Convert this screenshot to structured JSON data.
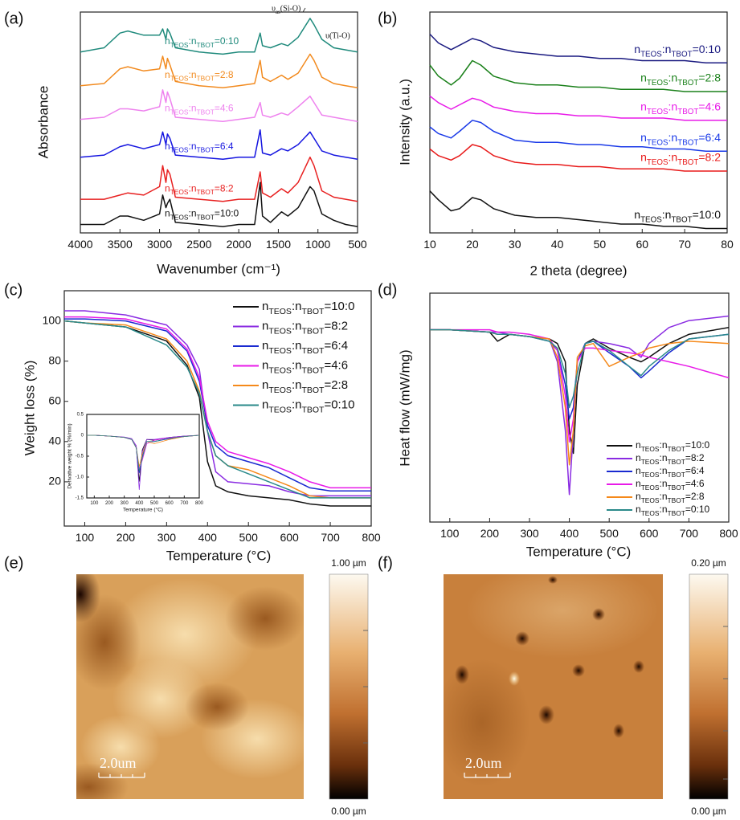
{
  "chart_data": [
    {
      "type": "line",
      "panel_label": "(a)",
      "x_label": "Wavenumber (cm⁻¹)",
      "y_label": "Absorbance",
      "annotations": [
        "υas(Si-O)",
        "υ(Ti-O)"
      ],
      "x": [
        4000,
        3700,
        3500,
        3400,
        3200,
        3000,
        2960,
        2920,
        2900,
        2870,
        2800,
        2500,
        2200,
        2000,
        1800,
        1730,
        1700,
        1600,
        1460,
        1380,
        1250,
        1100,
        1050,
        950,
        800,
        650,
        500
      ],
      "xlim": [
        4000,
        500
      ],
      "xticks": [
        4000,
        3500,
        3000,
        2500,
        2000,
        1500,
        1000,
        500
      ],
      "ylim": [
        0,
        105
      ],
      "series": [
        {
          "name": "nTEOS:nTBOT=0:10",
          "color": "#1f8a7c",
          "values": [
            86,
            88,
            95,
            96,
            94,
            94,
            97,
            92,
            97,
            95,
            88,
            86,
            85,
            86,
            86,
            95,
            89,
            88,
            90,
            89,
            93,
            102,
            99,
            92,
            88,
            87,
            86
          ]
        },
        {
          "name": "nTEOS:nTBOT=2:8",
          "color": "#f28a1e",
          "values": [
            70,
            71,
            78,
            79,
            77,
            78,
            84,
            78,
            83,
            80,
            72,
            70,
            69,
            70,
            71,
            82,
            74,
            72,
            75,
            73,
            76,
            85,
            82,
            74,
            71,
            70,
            69
          ]
        },
        {
          "name": "nTEOS:nTBOT=4:6",
          "color": "#ee82ee",
          "values": [
            54,
            55,
            59,
            59,
            58,
            60,
            68,
            62,
            67,
            64,
            55,
            54,
            53,
            54,
            55,
            62,
            56,
            55,
            57,
            56,
            60,
            65,
            62,
            56,
            55,
            54,
            53
          ]
        },
        {
          "name": "nTEOS:nTBOT=6:4",
          "color": "#1515e0",
          "values": [
            36,
            37,
            41,
            42,
            40,
            42,
            48,
            42,
            47,
            45,
            37,
            36,
            35,
            36,
            36,
            49,
            38,
            37,
            40,
            39,
            42,
            48,
            45,
            39,
            37,
            36,
            35
          ]
        },
        {
          "name": "nTEOS:nTBOT=8:2",
          "color": "#e82020",
          "values": [
            16,
            16,
            18,
            19,
            18,
            22,
            32,
            24,
            30,
            28,
            17,
            16,
            15,
            16,
            16,
            29,
            19,
            17,
            21,
            19,
            24,
            36,
            32,
            20,
            17,
            16,
            15
          ]
        },
        {
          "name": "nTEOS:nTBOT=10:0",
          "color": "#111111",
          "values": [
            4,
            4,
            8,
            8,
            6,
            9,
            18,
            12,
            14,
            16,
            5,
            4,
            3,
            4,
            4,
            24,
            8,
            5,
            10,
            8,
            12,
            22,
            20,
            9,
            6,
            4,
            3
          ]
        }
      ]
    },
    {
      "type": "line",
      "panel_label": "(b)",
      "x_label": "2 theta (degree)",
      "y_label": "Intensity (a.u.)",
      "x": [
        10,
        12,
        15,
        17,
        20,
        22,
        25,
        30,
        35,
        40,
        45,
        50,
        55,
        60,
        65,
        70,
        75,
        80
      ],
      "xlim": [
        10,
        80
      ],
      "xticks": [
        10,
        20,
        30,
        40,
        50,
        60,
        70,
        80
      ],
      "ylim": [
        0,
        100
      ],
      "series": [
        {
          "name": "nTEOS:nTBOT=0:10",
          "color": "#1a1a80",
          "values": [
            90,
            86,
            83,
            85,
            88,
            87,
            84,
            82,
            81,
            80,
            80,
            79,
            79,
            78,
            78,
            78,
            77,
            77
          ]
        },
        {
          "name": "nTEOS:nTBOT=2:8",
          "color": "#1a801a",
          "values": [
            76,
            71,
            67,
            70,
            78,
            76,
            71,
            68,
            67,
            67,
            66,
            66,
            65,
            65,
            65,
            64,
            64,
            64
          ]
        },
        {
          "name": "nTEOS:nTBOT=4:6",
          "color": "#e81ae8",
          "values": [
            62,
            59,
            56,
            58,
            61,
            60,
            57,
            55,
            54,
            54,
            53,
            53,
            52,
            52,
            52,
            51,
            51,
            51
          ]
        },
        {
          "name": "nTEOS:nTBOT=6:4",
          "color": "#1a3ae8",
          "values": [
            48,
            45,
            43,
            46,
            51,
            50,
            46,
            42,
            41,
            41,
            40,
            40,
            39,
            39,
            38,
            38,
            37,
            37
          ]
        },
        {
          "name": "nTEOS:nTBOT=8:2",
          "color": "#e81a1a",
          "values": [
            38,
            35,
            33,
            35,
            40,
            39,
            35,
            32,
            31,
            31,
            30,
            30,
            29,
            29,
            29,
            28,
            28,
            28
          ]
        },
        {
          "name": "nTEOS:nTBOT=10:0",
          "color": "#111111",
          "values": [
            19,
            15,
            10,
            11,
            16,
            15,
            11,
            8,
            7,
            7,
            6,
            5,
            4,
            4,
            3,
            3,
            2,
            2
          ]
        }
      ]
    },
    {
      "type": "line",
      "panel_label": "(c)",
      "x_label": "Temperature (°C)",
      "y_label": "Weight loss (%)",
      "legend": "upper right",
      "x": [
        50,
        100,
        200,
        300,
        350,
        380,
        400,
        420,
        450,
        500,
        550,
        600,
        650,
        700,
        800
      ],
      "xlim": [
        50,
        800
      ],
      "xticks": [
        100,
        200,
        300,
        400,
        500,
        600,
        700,
        800
      ],
      "ylim": [
        -2,
        115
      ],
      "yticks": [
        20,
        40,
        60,
        80,
        100
      ],
      "series": [
        {
          "name": "nTEOS:nTBOT=10:0",
          "color": "#111111",
          "values": [
            100,
            99,
            97,
            90,
            78,
            62,
            30,
            18,
            15,
            13,
            12,
            11,
            9,
            8,
            8
          ]
        },
        {
          "name": "nTEOS:nTBOT=8:2",
          "color": "#8a2be2",
          "values": [
            105,
            105,
            103,
            98,
            88,
            76,
            45,
            25,
            20,
            19,
            18,
            15,
            13,
            13,
            13
          ]
        },
        {
          "name": "nTEOS:nTBOT=6:4",
          "color": "#1a2ad0",
          "values": [
            101,
            101,
            100,
            95,
            85,
            70,
            48,
            38,
            33,
            30,
            27,
            22,
            17,
            15.5,
            15.5
          ]
        },
        {
          "name": "nTEOS:nTBOT=4:6",
          "color": "#e81ae8",
          "values": [
            102,
            102,
            101,
            96,
            86,
            72,
            50,
            40,
            35,
            32,
            29,
            25,
            20,
            17,
            17
          ]
        },
        {
          "name": "nTEOS:nTBOT=2:8",
          "color": "#f5891a",
          "values": [
            100,
            99,
            98,
            91,
            80,
            65,
            45,
            33,
            28,
            26,
            22,
            18,
            13,
            12,
            12
          ]
        },
        {
          "name": "nTEOS:nTBOT=0:10",
          "color": "#2a8a8a",
          "values": [
            100,
            99,
            97,
            88,
            77,
            64,
            45,
            33,
            28,
            24,
            20,
            16,
            12,
            12,
            12
          ]
        }
      ]
    },
    {
      "type": "line",
      "panel_label": "(d)",
      "x_label": "Temperature (°C)",
      "y_label": "Heat flow (mW/mg)",
      "legend": "lower right",
      "x": [
        50,
        100,
        200,
        220,
        250,
        300,
        350,
        370,
        390,
        400,
        410,
        420,
        440,
        460,
        500,
        550,
        580,
        600,
        650,
        700,
        800
      ],
      "xlim": [
        50,
        800
      ],
      "xticks": [
        100,
        200,
        300,
        400,
        500,
        600,
        700,
        800
      ],
      "ylim": [
        0,
        100
      ],
      "series": [
        {
          "name": "nTEOS:nTBOT=10:0",
          "color": "#111111",
          "values": [
            84,
            84,
            83,
            79,
            82,
            81,
            80,
            78,
            70,
            40,
            30,
            60,
            78,
            80,
            76,
            72,
            70,
            72,
            78,
            82,
            85
          ]
        },
        {
          "name": "nTEOS:nTBOT=8:2",
          "color": "#8a2be2",
          "values": [
            84,
            84,
            83,
            83,
            82,
            81,
            80,
            70,
            40,
            12,
            40,
            70,
            78,
            79,
            78,
            76,
            72,
            78,
            85,
            88,
            90
          ]
        },
        {
          "name": "nTEOS:nTBOT=6:4",
          "color": "#1a2ad0",
          "values": [
            84,
            84,
            83,
            82,
            82,
            81,
            79,
            75,
            60,
            45,
            50,
            70,
            78,
            79,
            74,
            68,
            63,
            66,
            74,
            80,
            82
          ]
        },
        {
          "name": "nTEOS:nTBOT=4:6",
          "color": "#e81ae8",
          "values": [
            84,
            84,
            84,
            83,
            83,
            82,
            80,
            75,
            55,
            35,
            45,
            70,
            76,
            76,
            75,
            74,
            73,
            72,
            70,
            68,
            63
          ]
        },
        {
          "name": "nTEOS:nTBOT=2:8",
          "color": "#f5891a",
          "values": [
            84,
            84,
            83,
            82,
            82,
            81,
            80,
            72,
            50,
            25,
            40,
            72,
            77,
            78,
            68,
            72,
            74,
            76,
            78,
            79,
            78
          ]
        },
        {
          "name": "nTEOS:nTBOT=0:10",
          "color": "#2a8a8a",
          "values": [
            84,
            84,
            83,
            82,
            82,
            81,
            79,
            76,
            65,
            50,
            55,
            65,
            78,
            79,
            75,
            68,
            64,
            68,
            75,
            80,
            82
          ]
        }
      ]
    },
    {
      "type": "line",
      "x_label": "Temperature (°C)",
      "y_label": "Derivative weight % (%/min)",
      "x": [
        50,
        100,
        200,
        300,
        350,
        380,
        400,
        420,
        450,
        500,
        600,
        700,
        800
      ],
      "xlim": [
        50,
        800
      ],
      "xticks": [
        100,
        200,
        300,
        400,
        500,
        600,
        700,
        800
      ],
      "ylim": [
        -1.5,
        0.5
      ],
      "yticks": [
        0.5,
        0,
        -0.5,
        {
          "value": -1,
          "label": "-1.0"
        },
        -1.5
      ],
      "series": [
        {
          "color": "#111111",
          "values": [
            0,
            0,
            -0.02,
            -0.05,
            -0.1,
            -0.3,
            -1.1,
            -0.35,
            -0.1,
            -0.12,
            -0.05,
            -0.02,
            0
          ]
        },
        {
          "color": "#8a2be2",
          "values": [
            0,
            0,
            -0.02,
            -0.04,
            -0.08,
            -0.25,
            -1.3,
            -0.4,
            -0.1,
            -0.1,
            -0.05,
            -0.02,
            0
          ]
        },
        {
          "color": "#1a2ad0",
          "values": [
            0,
            0,
            -0.02,
            -0.05,
            -0.1,
            -0.3,
            -0.9,
            -0.5,
            -0.15,
            -0.15,
            -0.08,
            -0.03,
            0
          ]
        },
        {
          "color": "#e81ae8",
          "values": [
            0,
            0,
            -0.02,
            -0.05,
            -0.1,
            -0.28,
            -0.8,
            -0.6,
            -0.2,
            -0.12,
            -0.06,
            -0.03,
            0
          ]
        },
        {
          "color": "#f5891a",
          "values": [
            0,
            0,
            -0.02,
            -0.05,
            -0.1,
            -0.3,
            -0.75,
            -0.45,
            -0.15,
            -0.2,
            -0.1,
            -0.03,
            0
          ]
        },
        {
          "color": "#2a8a8a",
          "values": [
            0,
            0,
            -0.02,
            -0.05,
            -0.1,
            -0.3,
            -0.85,
            -0.55,
            -0.15,
            -0.15,
            -0.07,
            -0.03,
            0
          ]
        }
      ]
    }
  ],
  "afm_images": [
    {
      "panel_label": "(e)",
      "scale_max": "1.00 µm",
      "scale_min": "0.00 µm",
      "scale_bar": "2.0um"
    },
    {
      "panel_label": "(f)",
      "scale_max": "0.20 µm",
      "scale_min": "0.00 µm",
      "scale_bar": "2.0um"
    }
  ]
}
